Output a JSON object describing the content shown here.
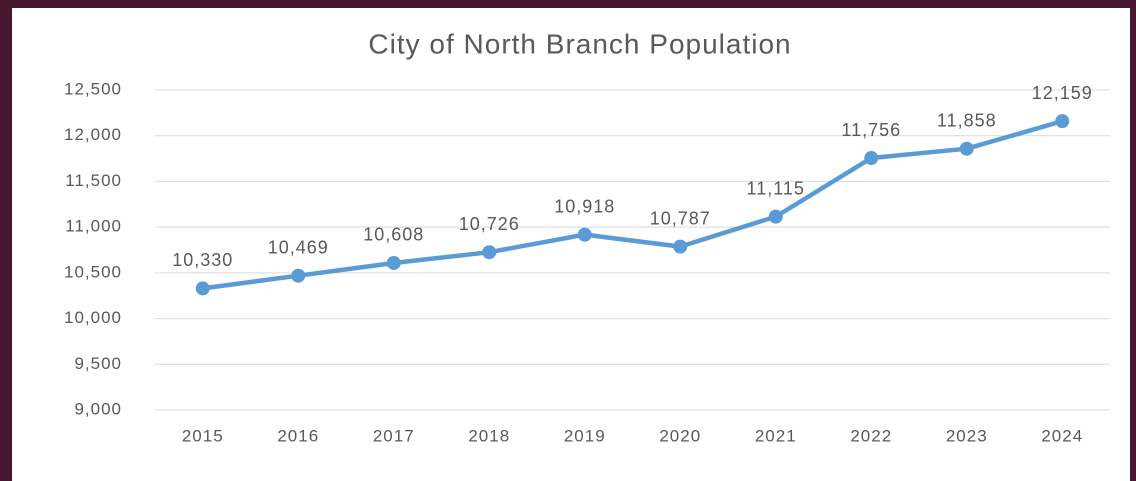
{
  "chart_data": {
    "type": "line",
    "title": "City of North Branch Population",
    "categories": [
      "2015",
      "2016",
      "2017",
      "2018",
      "2019",
      "2020",
      "2021",
      "2022",
      "2023",
      "2024"
    ],
    "series": [
      {
        "name": "Population",
        "color": "#5b9bd5",
        "values": [
          10330,
          10469,
          10608,
          10726,
          10918,
          10787,
          11115,
          11756,
          11858,
          12159
        ],
        "value_labels": [
          "10,330",
          "10,469",
          "10,608",
          "10,726",
          "10,918",
          "10,787",
          "11,115",
          "11,756",
          "11,858",
          "12,159"
        ]
      }
    ],
    "ylim": [
      9000,
      12500
    ],
    "yticks": [
      {
        "value": 9000,
        "label": "9,000"
      },
      {
        "value": 9500,
        "label": "9,500"
      },
      {
        "value": 10000,
        "label": "10,000"
      },
      {
        "value": 10500,
        "label": "10,500"
      },
      {
        "value": 11000,
        "label": "11,000"
      },
      {
        "value": 11500,
        "label": "11,500"
      },
      {
        "value": 12000,
        "label": "12,000"
      },
      {
        "value": 12500,
        "label": "12,500"
      }
    ],
    "grid": true
  }
}
